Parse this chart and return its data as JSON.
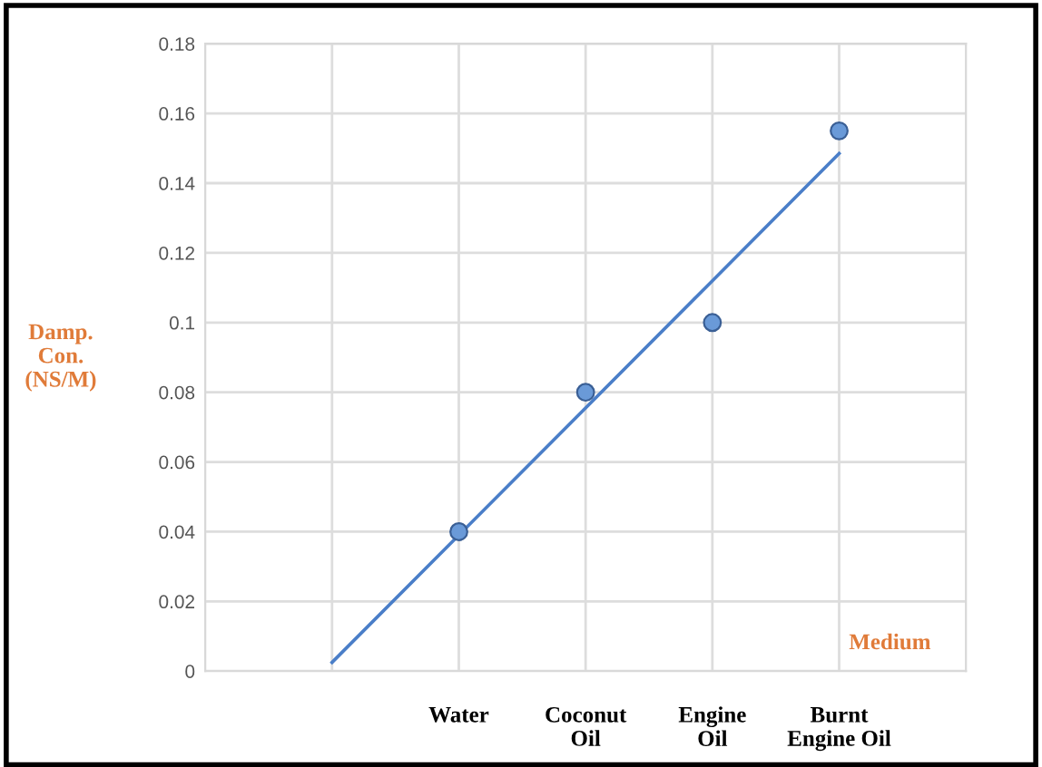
{
  "chart_data": {
    "type": "scatter",
    "xlabel": "Medium",
    "ylabel": "Damp.\nCon.\n(NS/M)",
    "categories": [
      null,
      "Water",
      "Coconut\nOil",
      "Engine\nOil",
      "Burnt\nEngine Oil"
    ],
    "series": [
      {
        "color": "#6a9ad8",
        "values": [
          null,
          0.04,
          0.08,
          0.1,
          0.155
        ],
        "marker": "circle"
      },
      {
        "type": "line",
        "color": "#4a7ec8",
        "values": [
          0.0025,
          0.039,
          0.0755,
          0.112,
          0.1485
        ],
        "marker": "none",
        "line_style": "solid"
      }
    ],
    "ylim": [
      0,
      0.18
    ],
    "yticks": [
      0,
      0.02,
      0.04,
      0.06,
      0.08,
      0.1,
      0.12,
      0.14,
      0.16,
      0.18
    ],
    "grid": true,
    "legend": false
  }
}
